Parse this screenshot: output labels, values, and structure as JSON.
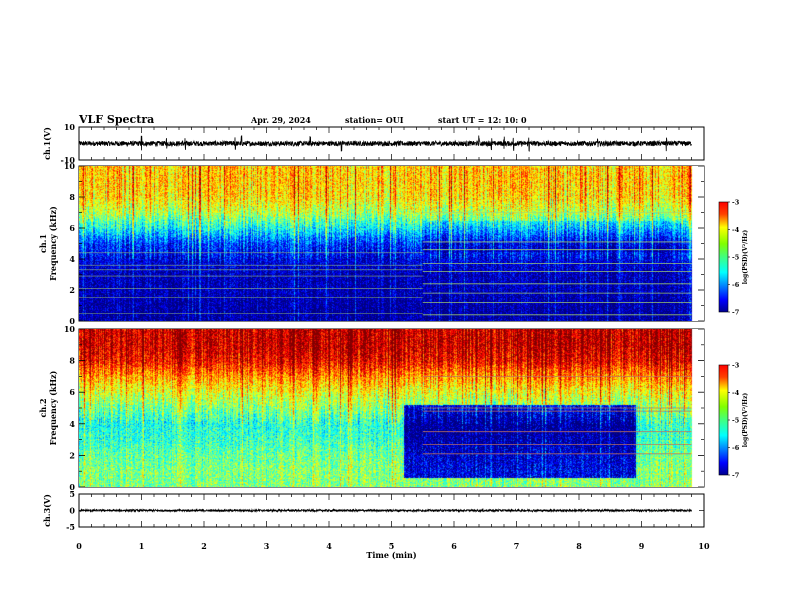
{
  "header": {
    "title": "VLF Spectra",
    "date": "Apr. 29, 2024",
    "station": "station= OUI",
    "start": "start  UT =   12: 10: 0"
  },
  "chart_data": [
    {
      "id": "ch1-waveform",
      "type": "line",
      "ylabel": "ch.1(V)",
      "ylim": [
        -10,
        10
      ],
      "yticks": [
        "10",
        "-10"
      ],
      "xlim": [
        0,
        10
      ],
      "data_end_min": 9.8,
      "baseline": 0,
      "noise_amplitude": 1.5,
      "spikes_min": [
        1.0,
        1.4,
        1.7,
        2.5,
        2.6,
        3.7,
        4.2,
        6.4,
        6.6,
        6.8,
        6.95,
        7.2,
        8.3,
        9.4
      ],
      "spike_amplitude": 3.5
    },
    {
      "id": "ch1-spectrogram",
      "type": "heatmap",
      "ylabel_top": "ch.1",
      "ylabel": "Frequency (kHz)",
      "ylim": [
        0,
        10
      ],
      "yticks": [
        "0",
        "2",
        "4",
        "6",
        "8",
        "10"
      ],
      "xlim": [
        0,
        10
      ],
      "data_end_min": 9.8,
      "colorbar": {
        "label": "log(PSD)(V²/Hz)",
        "range": [
          -7,
          -3
        ],
        "ticks": [
          "-3",
          "-4",
          "-5",
          "-6",
          "-7"
        ]
      },
      "profile_freq_khz": [
        0,
        1,
        2,
        3,
        4,
        5,
        6,
        7,
        8,
        9,
        10
      ],
      "profile_log_psd": [
        -6.9,
        -6.9,
        -6.8,
        -6.8,
        -6.6,
        -6.3,
        -5.5,
        -4.8,
        -4.4,
        -4.3,
        -4.3
      ],
      "segment_change_min": 5.5,
      "segment_lines_khz": [
        0.4,
        1.2,
        1.8,
        2.4,
        3.2,
        3.7,
        4.6,
        5.1,
        7.0
      ],
      "early_lines_khz": [
        0.5,
        1.5,
        2.1,
        2.9,
        3.3,
        3.6,
        4.4
      ]
    },
    {
      "id": "ch2-spectrogram",
      "type": "heatmap",
      "ylabel_top": "ch.2",
      "ylabel": "Frequency (kHz)",
      "ylim": [
        0,
        10
      ],
      "yticks": [
        "0",
        "2",
        "4",
        "6",
        "8",
        "10"
      ],
      "xlim": [
        0,
        10
      ],
      "data_end_min": 9.8,
      "colorbar": {
        "label": "log(PSD)(V²/Hz)",
        "range": [
          -7,
          -3
        ],
        "ticks": [
          "-3",
          "-4",
          "-5",
          "-6",
          "-7"
        ]
      },
      "profile_freq_khz": [
        0,
        1,
        2,
        3,
        4,
        5,
        6,
        7,
        8,
        9,
        10
      ],
      "profile_log_psd": [
        -5.0,
        -5.0,
        -5.1,
        -5.3,
        -5.4,
        -5.0,
        -4.6,
        -4.1,
        -3.5,
        -3.3,
        -3.3
      ],
      "dark_region_min": [
        5.2,
        8.9
      ],
      "dark_region_khz": [
        0.6,
        5.2
      ],
      "segment_lines_khz": [
        2.1,
        2.7,
        3.5,
        4.8,
        5.0,
        7.0
      ]
    },
    {
      "id": "ch3-waveform",
      "type": "line",
      "ylabel": "ch.3(V)",
      "ylim": [
        -5,
        5
      ],
      "yticks": [
        "5",
        "0",
        "-5"
      ],
      "xlim": [
        0,
        10
      ],
      "data_end_min": 9.8,
      "baseline": 0,
      "noise_amplitude": 0.3
    }
  ],
  "xaxis": {
    "label": "Time (min)",
    "ticks": [
      "0",
      "1",
      "2",
      "3",
      "4",
      "5",
      "6",
      "7",
      "8",
      "9",
      "10"
    ]
  }
}
